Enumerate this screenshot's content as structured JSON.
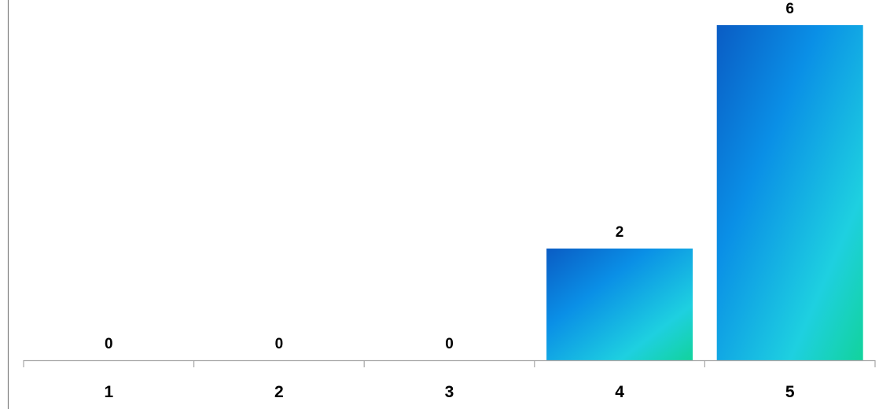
{
  "chart_data": {
    "type": "bar",
    "categories": [
      "1",
      "2",
      "3",
      "4",
      "5"
    ],
    "values": [
      0,
      0,
      0,
      2,
      6
    ],
    "data_labels": [
      "0",
      "0",
      "0",
      "2",
      "6"
    ],
    "title": "",
    "xlabel": "",
    "ylabel": "",
    "ylim": [
      0,
      6
    ],
    "grid": false,
    "legend": "none",
    "colors": {
      "bar_gradient": [
        "#0a5cc4",
        "#0a8fe6",
        "#1ed0e0",
        "#12d39c"
      ],
      "axis": "#a6a6a6",
      "frame": "#808080"
    }
  }
}
